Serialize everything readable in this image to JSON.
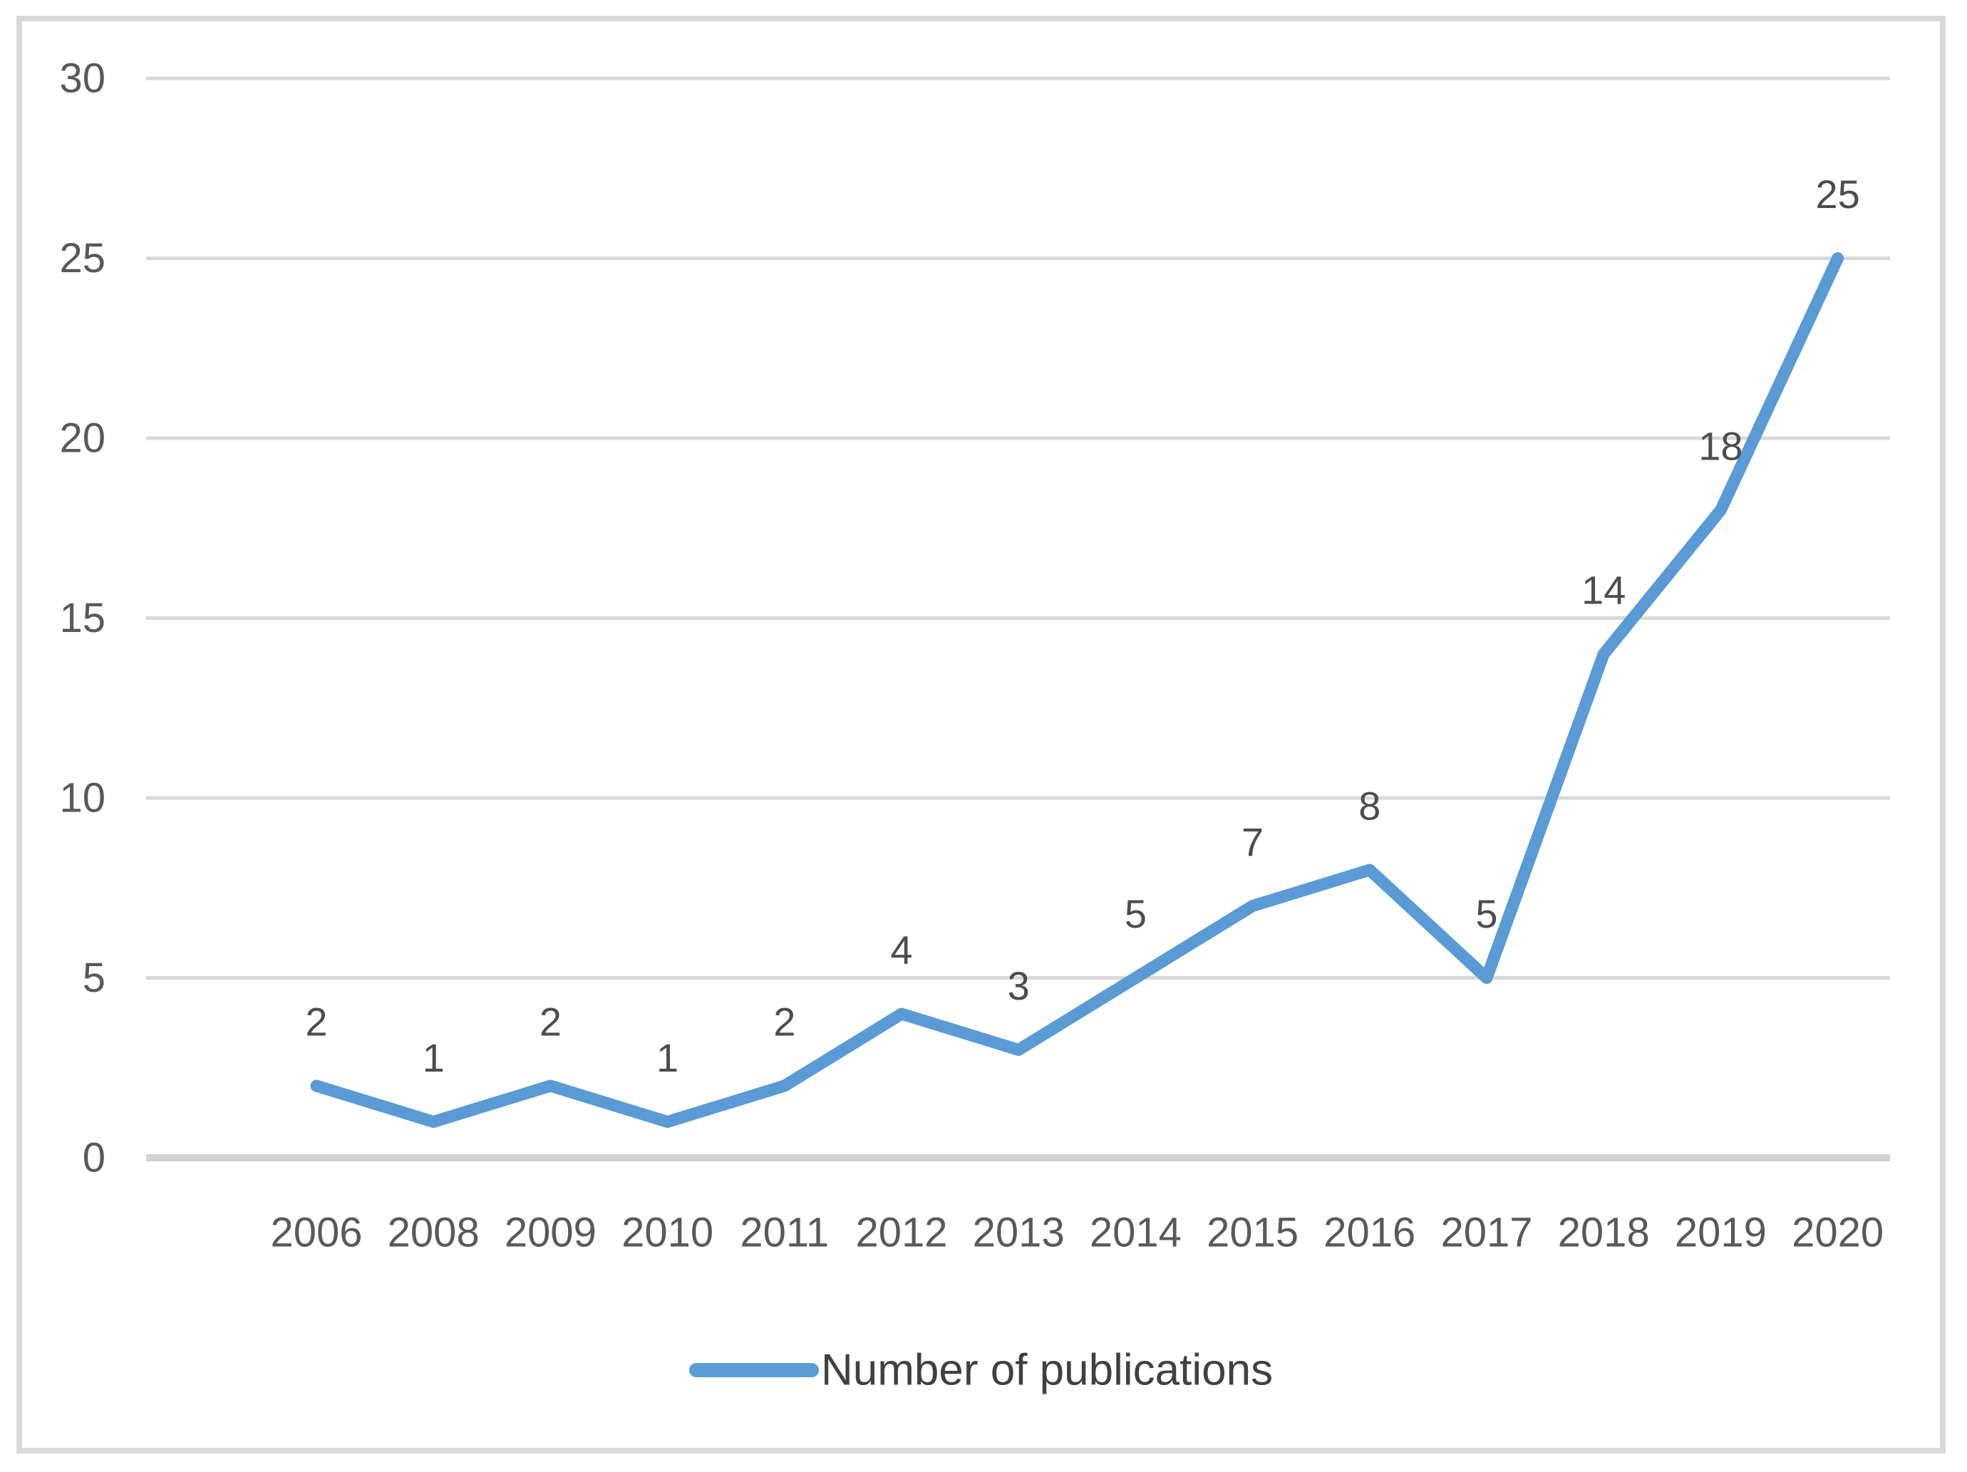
{
  "chart_data": {
    "type": "line",
    "categories": [
      "2006",
      "2008",
      "2009",
      "2010",
      "2011",
      "2012",
      "2013",
      "2014",
      "2015",
      "2016",
      "2017",
      "2018",
      "2019",
      "2020"
    ],
    "series": [
      {
        "name": "Number of publications",
        "values": [
          2,
          1,
          2,
          1,
          2,
          4,
          3,
          5,
          7,
          8,
          5,
          14,
          18,
          25
        ]
      }
    ],
    "title": "",
    "xlabel": "",
    "ylabel": "",
    "ylim": [
      0,
      30
    ],
    "yticks": [
      0,
      5,
      10,
      15,
      20,
      25,
      30
    ],
    "grid": true,
    "data_labels_shown": true,
    "legend_position": "bottom",
    "legend_label": "Number of publications",
    "colors": {
      "series_line": "#5b9bd5",
      "gridline": "#d9d9d9",
      "axis_text": "#595959",
      "data_label_text": "#4d4d4d",
      "legend_text": "#404040",
      "frame_border": "#d9d9d9",
      "background": "#ffffff"
    }
  }
}
